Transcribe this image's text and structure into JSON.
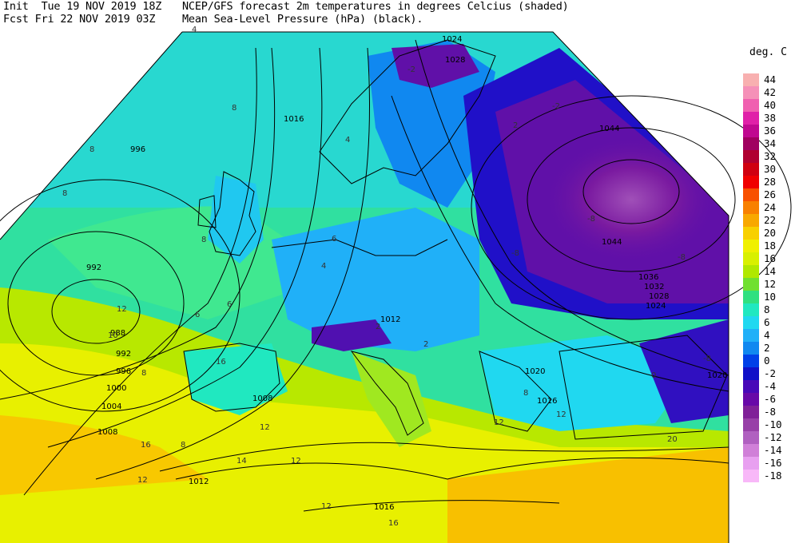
{
  "header": {
    "line1_left": "Init  Tue 19 NOV 2019 18Z",
    "line2_left": "Fcst Fri 22 NOV 2019 03Z",
    "line1_right": "NCEP/GFS forecast 2m temperatures in degrees Celcius (shaded)",
    "line2_right": "Mean Sea-Level Pressure (hPa) (black)."
  },
  "legend": {
    "unit": "deg. C",
    "items": [
      {
        "label": "44",
        "color": "#f8b0b0"
      },
      {
        "label": "42",
        "color": "#f590b8"
      },
      {
        "label": "40",
        "color": "#f060b0"
      },
      {
        "label": "38",
        "color": "#e020a8"
      },
      {
        "label": "36",
        "color": "#c00890"
      },
      {
        "label": "34",
        "color": "#a00060"
      },
      {
        "label": "32",
        "color": "#b00030"
      },
      {
        "label": "30",
        "color": "#d00010"
      },
      {
        "label": "28",
        "color": "#f00000"
      },
      {
        "label": "26",
        "color": "#f85000"
      },
      {
        "label": "24",
        "color": "#f88000"
      },
      {
        "label": "22",
        "color": "#f8a800"
      },
      {
        "label": "20",
        "color": "#f8d000"
      },
      {
        "label": "18",
        "color": "#f0f000"
      },
      {
        "label": "16",
        "color": "#d8f000"
      },
      {
        "label": "14",
        "color": "#b0e800"
      },
      {
        "label": "12",
        "color": "#70e030"
      },
      {
        "label": "10",
        "color": "#30e080"
      },
      {
        "label": "8",
        "color": "#20e8c0"
      },
      {
        "label": "6",
        "color": "#20d8f0"
      },
      {
        "label": "4",
        "color": "#20b0f8"
      },
      {
        "label": "2",
        "color": "#1088f0"
      },
      {
        "label": "0",
        "color": "#0040e8"
      },
      {
        "label": "-2",
        "color": "#1010c8"
      },
      {
        "label": "-4",
        "color": "#4808b8"
      },
      {
        "label": "-6",
        "color": "#6808a8"
      },
      {
        "label": "-8",
        "color": "#802098"
      },
      {
        "label": "-10",
        "color": "#9840a8"
      },
      {
        "label": "-12",
        "color": "#b060c0"
      },
      {
        "label": "-14",
        "color": "#d080d8"
      },
      {
        "label": "-16",
        "color": "#e8a0f0"
      },
      {
        "label": "-18",
        "color": "#f8b8f8"
      }
    ]
  },
  "isobar_labels": [
    "1016",
    "996",
    "992",
    "988",
    "992",
    "996",
    "1000",
    "1004",
    "1008",
    "1008",
    "1012",
    "1012",
    "1016",
    "1024",
    "1028",
    "1044",
    "1044",
    "1036",
    "1032",
    "1028",
    "1024",
    "1020",
    "1020",
    "1016"
  ],
  "temp_labels": [
    "4",
    "8",
    "8",
    "8",
    "8",
    "6",
    "6",
    "12",
    "8",
    "10",
    "16",
    "12",
    "14",
    "12",
    "16",
    "12",
    "12",
    "8",
    "12",
    "-2",
    "-2",
    "2",
    "4",
    "-8",
    "-8",
    "-8",
    "-8",
    "2",
    "6",
    "4",
    "2",
    "8",
    "0",
    "12",
    "20",
    "16"
  ]
}
